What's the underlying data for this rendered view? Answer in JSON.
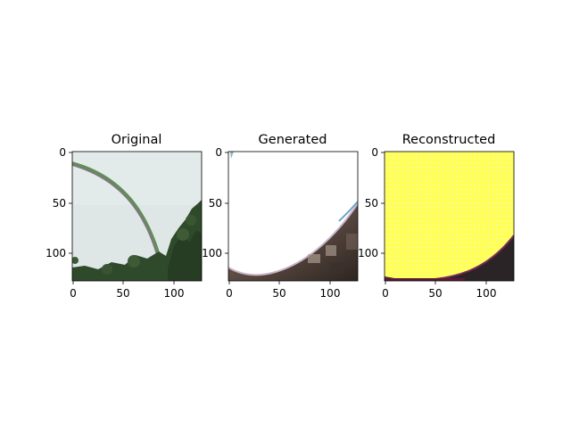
{
  "panels": [
    {
      "title": "Original",
      "xticks": [
        "0",
        "50",
        "100"
      ],
      "yticks": [
        "0",
        "50",
        "100"
      ]
    },
    {
      "title": "Generated",
      "xticks": [
        "0",
        "50",
        "100"
      ],
      "yticks": [
        "0",
        "50",
        "100"
      ]
    },
    {
      "title": "Reconstructed",
      "xticks": [
        "0",
        "50",
        "100"
      ],
      "yticks": [
        "0",
        "50",
        "100"
      ]
    }
  ],
  "colors": {
    "sky": "#dde6e6",
    "arc": "#7a6f7a",
    "arc_highlight": "#3a8a3a",
    "trees": "#2f4a2a",
    "generated_bg": "#ffffff",
    "generated_dark": "#4e3f38",
    "reconstructed_bg": "#ffff66",
    "reconstructed_dark": "#2b2528"
  }
}
